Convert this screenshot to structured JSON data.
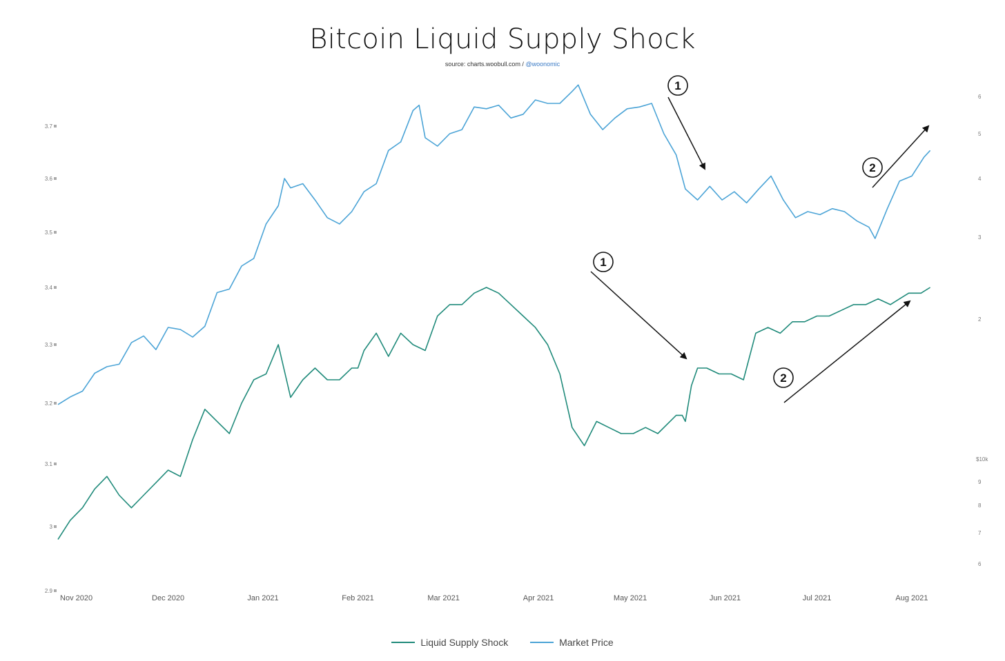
{
  "header": {
    "title": "Bitcoin Liquid Supply Shock",
    "source_text": "source: charts.woobull.com /",
    "source_handle": "@woonomic"
  },
  "legend": {
    "items": [
      {
        "label": "Liquid Supply Shock",
        "color": "#1f8a7a"
      },
      {
        "label": "Market Price",
        "color": "#4aa3d6"
      }
    ]
  },
  "annotations": [
    {
      "label": "1"
    },
    {
      "label": "2"
    },
    {
      "label": "1"
    },
    {
      "label": "2"
    }
  ],
  "chart_data": {
    "type": "line",
    "title": "Bitcoin Liquid Supply Shock",
    "subtitle": "source: charts.woobull.com / @woonomic",
    "x_axis": {
      "ticks": [
        "Nov 2020",
        "Dec 2020",
        "Jan 2021",
        "Feb 2021",
        "Mar 2021",
        "Apr 2021",
        "May 2021",
        "Jun 2021",
        "Jul 2021",
        "Aug 2021"
      ],
      "range": [
        "2020-10-26",
        "2021-08-08"
      ]
    },
    "y_axis_left": {
      "ticks": [
        "2.9",
        "3",
        "3.1",
        "3.2",
        "3.3",
        "3.4",
        "3.5",
        "3.6",
        "3.7"
      ],
      "range": [
        2.9,
        3.8
      ]
    },
    "y_axis_right": {
      "scale": "log",
      "ticks": [
        "6",
        "7",
        "8",
        "9",
        "$10k",
        "2",
        "3",
        "4",
        "5",
        "6"
      ],
      "tick_values": [
        6000,
        7000,
        8000,
        9000,
        10000,
        20000,
        30000,
        40000,
        50000,
        60000
      ]
    },
    "grid": false,
    "legend_position": "bottom-center",
    "series": [
      {
        "name": "Liquid Supply Shock",
        "axis": "left",
        "color": "#1f8a7a",
        "x": [
          "2020-10-26",
          "2020-10-30",
          "2020-11-03",
          "2020-11-07",
          "2020-11-11",
          "2020-11-15",
          "2020-11-19",
          "2020-11-23",
          "2020-11-27",
          "2020-12-01",
          "2020-12-05",
          "2020-12-09",
          "2020-12-13",
          "2020-12-17",
          "2020-12-21",
          "2020-12-25",
          "2020-12-29",
          "2021-01-02",
          "2021-01-06",
          "2021-01-10",
          "2021-01-14",
          "2021-01-18",
          "2021-01-22",
          "2021-01-26",
          "2021-01-30",
          "2021-02-01",
          "2021-02-03",
          "2021-02-07",
          "2021-02-11",
          "2021-02-15",
          "2021-02-19",
          "2021-02-23",
          "2021-02-27",
          "2021-03-03",
          "2021-03-07",
          "2021-03-11",
          "2021-03-15",
          "2021-03-19",
          "2021-03-23",
          "2021-03-27",
          "2021-03-31",
          "2021-04-04",
          "2021-04-08",
          "2021-04-12",
          "2021-04-16",
          "2021-04-20",
          "2021-04-24",
          "2021-04-28",
          "2021-05-02",
          "2021-05-06",
          "2021-05-10",
          "2021-05-14",
          "2021-05-16",
          "2021-05-18",
          "2021-05-19",
          "2021-05-21",
          "2021-05-23",
          "2021-05-26",
          "2021-05-30",
          "2021-06-03",
          "2021-06-07",
          "2021-06-11",
          "2021-06-15",
          "2021-06-19",
          "2021-06-23",
          "2021-06-27",
          "2021-07-01",
          "2021-07-05",
          "2021-07-09",
          "2021-07-13",
          "2021-07-17",
          "2021-07-21",
          "2021-07-25",
          "2021-07-28",
          "2021-07-31",
          "2021-08-04",
          "2021-08-07"
        ],
        "values": [
          2.98,
          3.01,
          3.03,
          3.06,
          3.08,
          3.05,
          3.03,
          3.05,
          3.07,
          3.09,
          3.08,
          3.14,
          3.19,
          3.17,
          3.15,
          3.2,
          3.24,
          3.25,
          3.3,
          3.21,
          3.24,
          3.26,
          3.24,
          3.24,
          3.26,
          3.26,
          3.29,
          3.32,
          3.28,
          3.32,
          3.3,
          3.29,
          3.35,
          3.37,
          3.37,
          3.39,
          3.4,
          3.39,
          3.37,
          3.35,
          3.33,
          3.3,
          3.25,
          3.16,
          3.13,
          3.17,
          3.16,
          3.15,
          3.15,
          3.16,
          3.15,
          3.17,
          3.18,
          3.18,
          3.17,
          3.23,
          3.26,
          3.26,
          3.25,
          3.25,
          3.24,
          3.32,
          3.33,
          3.32,
          3.34,
          3.34,
          3.35,
          3.35,
          3.36,
          3.37,
          3.37,
          3.38,
          3.37,
          3.38,
          3.39,
          3.39,
          3.4
        ]
      },
      {
        "name": "Market Price",
        "axis": "right",
        "color": "#4aa3d6",
        "x": [
          "2020-10-26",
          "2020-10-30",
          "2020-11-03",
          "2020-11-07",
          "2020-11-11",
          "2020-11-15",
          "2020-11-19",
          "2020-11-23",
          "2020-11-27",
          "2020-12-01",
          "2020-12-05",
          "2020-12-09",
          "2020-12-13",
          "2020-12-17",
          "2020-12-21",
          "2020-12-25",
          "2020-12-29",
          "2021-01-02",
          "2021-01-06",
          "2021-01-08",
          "2021-01-10",
          "2021-01-14",
          "2021-01-18",
          "2021-01-22",
          "2021-01-26",
          "2021-01-30",
          "2021-02-03",
          "2021-02-07",
          "2021-02-11",
          "2021-02-15",
          "2021-02-19",
          "2021-02-21",
          "2021-02-23",
          "2021-02-27",
          "2021-03-03",
          "2021-03-07",
          "2021-03-11",
          "2021-03-15",
          "2021-03-19",
          "2021-03-23",
          "2021-03-27",
          "2021-03-31",
          "2021-04-04",
          "2021-04-08",
          "2021-04-12",
          "2021-04-14",
          "2021-04-18",
          "2021-04-22",
          "2021-04-26",
          "2021-04-30",
          "2021-05-04",
          "2021-05-08",
          "2021-05-12",
          "2021-05-16",
          "2021-05-19",
          "2021-05-23",
          "2021-05-27",
          "2021-05-31",
          "2021-06-04",
          "2021-06-08",
          "2021-06-12",
          "2021-06-16",
          "2021-06-20",
          "2021-06-24",
          "2021-06-28",
          "2021-07-02",
          "2021-07-06",
          "2021-07-10",
          "2021-07-14",
          "2021-07-18",
          "2021-07-20",
          "2021-07-24",
          "2021-07-28",
          "2021-08-01",
          "2021-08-05",
          "2021-08-07"
        ],
        "values": [
          13100,
          13600,
          14000,
          15300,
          15800,
          16000,
          17800,
          18400,
          17200,
          19200,
          19000,
          18300,
          19300,
          22800,
          23200,
          26000,
          27000,
          32000,
          35000,
          40000,
          38200,
          39000,
          36000,
          33000,
          32000,
          34000,
          37500,
          39000,
          46000,
          48000,
          56000,
          57500,
          49000,
          47000,
          50000,
          51000,
          57000,
          56500,
          57500,
          54000,
          55000,
          59000,
          58000,
          58000,
          61500,
          63500,
          55000,
          51000,
          54000,
          56500,
          57000,
          58000,
          50000,
          45000,
          38000,
          36000,
          38500,
          36000,
          37500,
          35500,
          38000,
          40500,
          36000,
          33000,
          34000,
          33500,
          34500,
          34000,
          32500,
          31500,
          29800,
          34500,
          39500,
          40500,
          44500,
          46000
        ]
      }
    ]
  }
}
